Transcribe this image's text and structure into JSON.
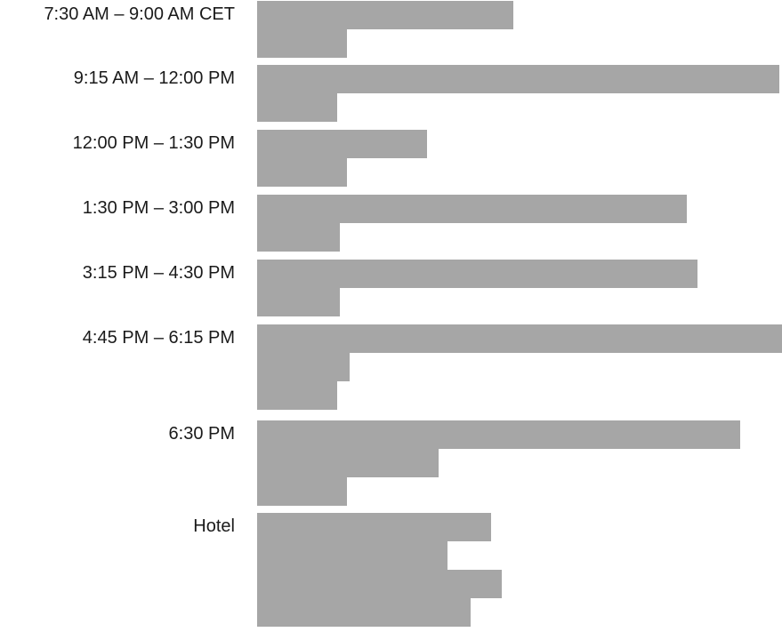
{
  "colors": {
    "redaction": "#a6a6a6",
    "text": "#1a1a1a"
  },
  "agenda": {
    "slots": [
      {
        "time": "7:30 AM – 9:00 AM CET",
        "redacted_lines": 2
      },
      {
        "time": "9:15 AM – 12:00 PM",
        "redacted_lines": 2
      },
      {
        "time": "12:00 PM – 1:30 PM",
        "redacted_lines": 2
      },
      {
        "time": "1:30 PM – 3:00 PM",
        "redacted_lines": 2
      },
      {
        "time": "3:15 PM – 4:30 PM",
        "redacted_lines": 2
      },
      {
        "time": "4:45 PM – 6:15 PM",
        "redacted_lines": 3
      },
      {
        "time": "6:30 PM",
        "redacted_lines": 3
      },
      {
        "time": "Hotel",
        "redacted_lines": 4
      }
    ]
  }
}
